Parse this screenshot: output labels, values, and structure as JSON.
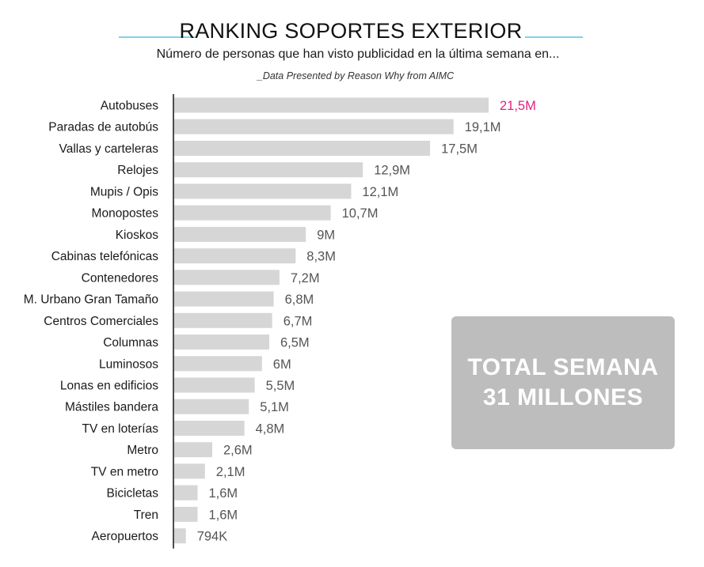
{
  "header": {
    "title": "RANKING SOPORTES EXTERIOR",
    "subtitle": "Número de personas que han visto publicidad en la última semana en...",
    "source": "_Data Presented by Reason Why from AIMC"
  },
  "total": {
    "line1": "TOTAL SEMANA",
    "line2": "31 MILLONES"
  },
  "colors": {
    "bar": "#d6d6d6",
    "highlight_label": "#e6207e",
    "value_label": "#555555",
    "axis": "#111111",
    "accent_line": "#7fd3ea",
    "total_box": "#bdbdbd"
  },
  "chart_data": {
    "type": "bar",
    "orientation": "horizontal",
    "categories": [
      "Autobuses",
      "Paradas de autobús",
      "Vallas y carteleras",
      "Relojes",
      "Mupis / Opis",
      "Monopostes",
      "Kioskos",
      "Cabinas telefónicas",
      "Contenedores",
      "M. Urbano Gran Tamaño",
      "Centros Comerciales",
      "Columnas",
      "Luminosos",
      "Lonas en edificios",
      "Mástiles bandera",
      "TV en loterías",
      "Metro",
      "TV en metro",
      "Bicicletas",
      "Tren",
      "Aeropuertos"
    ],
    "values": [
      21.5,
      19.1,
      17.5,
      12.9,
      12.1,
      10.7,
      9,
      8.3,
      7.2,
      6.8,
      6.7,
      6.5,
      6,
      5.5,
      5.1,
      4.8,
      2.6,
      2.1,
      1.6,
      1.6,
      0.794
    ],
    "value_labels": [
      "21,5M",
      "19,1M",
      "17,5M",
      "12,9M",
      "12,1M",
      "10,7M",
      "9M",
      "8,3M",
      "7,2M",
      "6,8M",
      "6,7M",
      "6,5M",
      "6M",
      "5,5M",
      "5,1M",
      "4,8M",
      "2,6M",
      "2,1M",
      "1,6M",
      "1,6M",
      "794K"
    ],
    "unit": "millones",
    "highlight_index": 0,
    "xlim": [
      0,
      21.5
    ],
    "grid": false,
    "legend": "none"
  }
}
